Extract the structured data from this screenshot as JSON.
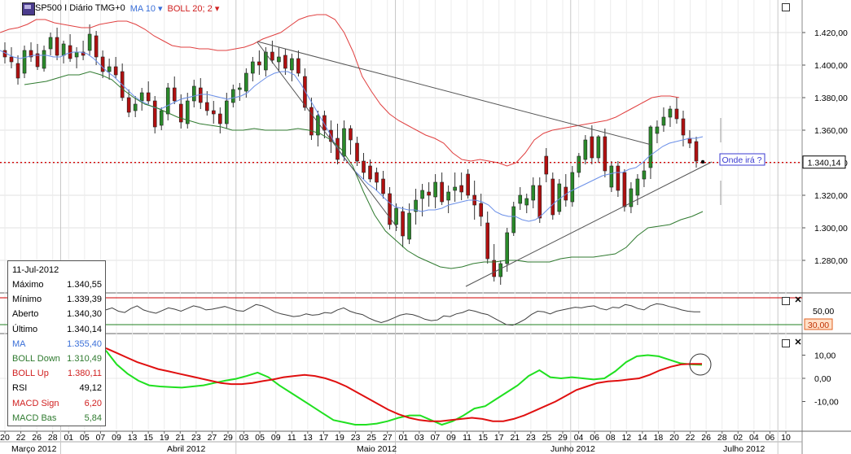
{
  "header": {
    "instrument_label": "SP500 I Diário TMG+0",
    "ma_label": "MA 10",
    "boll_label": "BOLL 20; 2"
  },
  "colors": {
    "ma": "#6a8fe8",
    "boll_up": "#e04040",
    "boll_down": "#2f7a2f",
    "candle_up": "#2a8a2a",
    "candle_down": "#b01010",
    "rsi": "#404040",
    "macd_signal": "#e01010",
    "macd_base": "#20e020",
    "price_line": "#d00000"
  },
  "annotation": "Onde irá ?",
  "current_price_label": "1.340,14",
  "rsi_marker_label": "30,00",
  "info": {
    "date": "11-Jul-2012",
    "rows": [
      {
        "label": "Máximo",
        "value": "1.340,55",
        "color": "#000000"
      },
      {
        "label": "Mínimo",
        "value": "1.339,39",
        "color": "#000000"
      },
      {
        "label": "Aberto",
        "value": "1.340,30",
        "color": "#000000"
      },
      {
        "label": "Último",
        "value": "1.340,14",
        "color": "#000000"
      },
      {
        "label": "MA",
        "value": "1.355,40",
        "color": "#3a6fd8"
      },
      {
        "label": "BOLL Down",
        "value": "1.310,49",
        "color": "#2f7a2f"
      },
      {
        "label": "BOLL Up",
        "value": "1.380,11",
        "color": "#d02020"
      },
      {
        "label": "RSI",
        "value": "49,12",
        "color": "#000000"
      },
      {
        "label": "MACD Sign",
        "value": "6,20",
        "color": "#d02020"
      },
      {
        "label": "MACD Bas",
        "value": "5,84",
        "color": "#2f7a2f"
      }
    ]
  },
  "chart_data": {
    "type": "candlestick",
    "y_ticks": [
      "1.420,00",
      "1.400,00",
      "1.380,00",
      "1.360,00",
      "1.340,00",
      "1.320,00",
      "1.300,00",
      "1.280,00"
    ],
    "y_tick_values": [
      1420,
      1400,
      1380,
      1360,
      1340,
      1320,
      1300,
      1280
    ],
    "ylim": [
      1260,
      1440
    ],
    "current_price": 1340.14,
    "x_day_labels": [
      "20",
      "22",
      "26",
      "28",
      "01",
      "05",
      "07",
      "09",
      "13",
      "15",
      "19",
      "21",
      "23",
      "27",
      "29",
      "03",
      "05",
      "09",
      "11",
      "13",
      "17",
      "19",
      "23",
      "25",
      "27",
      "01",
      "03",
      "07",
      "09",
      "11",
      "15",
      "17",
      "21",
      "23",
      "25",
      "29",
      "04",
      "06",
      "08",
      "12",
      "14",
      "18",
      "20",
      "22",
      "26",
      "28",
      "02",
      "04",
      "06",
      "10"
    ],
    "x_month_labels": [
      "Março 2012",
      "Abril 2012",
      "Maio 2012",
      "Junho 2012",
      "Julho 2012"
    ],
    "candles": [
      {
        "o": 1409,
        "h": 1414,
        "l": 1401,
        "c": 1405
      },
      {
        "o": 1405,
        "h": 1411,
        "l": 1398,
        "c": 1402
      },
      {
        "o": 1401,
        "h": 1406,
        "l": 1388,
        "c": 1392
      },
      {
        "o": 1395,
        "h": 1412,
        "l": 1392,
        "c": 1409
      },
      {
        "o": 1409,
        "h": 1414,
        "l": 1402,
        "c": 1405
      },
      {
        "o": 1407,
        "h": 1413,
        "l": 1397,
        "c": 1399
      },
      {
        "o": 1398,
        "h": 1412,
        "l": 1396,
        "c": 1409
      },
      {
        "o": 1410,
        "h": 1420,
        "l": 1406,
        "c": 1417
      },
      {
        "o": 1417,
        "h": 1423,
        "l": 1403,
        "c": 1406
      },
      {
        "o": 1406,
        "h": 1415,
        "l": 1401,
        "c": 1413
      },
      {
        "o": 1412,
        "h": 1419,
        "l": 1402,
        "c": 1404
      },
      {
        "o": 1405,
        "h": 1411,
        "l": 1398,
        "c": 1408
      },
      {
        "o": 1408,
        "h": 1415,
        "l": 1403,
        "c": 1406
      },
      {
        "o": 1409,
        "h": 1425,
        "l": 1406,
        "c": 1419
      },
      {
        "o": 1418,
        "h": 1421,
        "l": 1400,
        "c": 1405
      },
      {
        "o": 1405,
        "h": 1409,
        "l": 1392,
        "c": 1396
      },
      {
        "o": 1396,
        "h": 1404,
        "l": 1391,
        "c": 1399
      },
      {
        "o": 1399,
        "h": 1405,
        "l": 1392,
        "c": 1394
      },
      {
        "o": 1396,
        "h": 1401,
        "l": 1378,
        "c": 1380
      },
      {
        "o": 1380,
        "h": 1385,
        "l": 1368,
        "c": 1371
      },
      {
        "o": 1372,
        "h": 1381,
        "l": 1368,
        "c": 1376
      },
      {
        "o": 1378,
        "h": 1386,
        "l": 1372,
        "c": 1383
      },
      {
        "o": 1383,
        "h": 1390,
        "l": 1376,
        "c": 1378
      },
      {
        "o": 1378,
        "h": 1381,
        "l": 1358,
        "c": 1362
      },
      {
        "o": 1363,
        "h": 1374,
        "l": 1360,
        "c": 1372
      },
      {
        "o": 1370,
        "h": 1389,
        "l": 1366,
        "c": 1386
      },
      {
        "o": 1386,
        "h": 1393,
        "l": 1376,
        "c": 1378
      },
      {
        "o": 1376,
        "h": 1382,
        "l": 1361,
        "c": 1365
      },
      {
        "o": 1364,
        "h": 1383,
        "l": 1361,
        "c": 1378
      },
      {
        "o": 1378,
        "h": 1391,
        "l": 1374,
        "c": 1387
      },
      {
        "o": 1386,
        "h": 1392,
        "l": 1373,
        "c": 1377
      },
      {
        "o": 1377,
        "h": 1384,
        "l": 1369,
        "c": 1372
      },
      {
        "o": 1372,
        "h": 1378,
        "l": 1364,
        "c": 1370
      },
      {
        "o": 1370,
        "h": 1374,
        "l": 1358,
        "c": 1364
      },
      {
        "o": 1364,
        "h": 1383,
        "l": 1361,
        "c": 1378
      },
      {
        "o": 1377,
        "h": 1388,
        "l": 1374,
        "c": 1385
      },
      {
        "o": 1385,
        "h": 1389,
        "l": 1378,
        "c": 1386
      },
      {
        "o": 1384,
        "h": 1398,
        "l": 1380,
        "c": 1395
      },
      {
        "o": 1395,
        "h": 1405,
        "l": 1390,
        "c": 1402
      },
      {
        "o": 1402,
        "h": 1409,
        "l": 1394,
        "c": 1400
      },
      {
        "o": 1397,
        "h": 1411,
        "l": 1393,
        "c": 1408
      },
      {
        "o": 1408,
        "h": 1415,
        "l": 1401,
        "c": 1403
      },
      {
        "o": 1402,
        "h": 1411,
        "l": 1396,
        "c": 1405
      },
      {
        "o": 1406,
        "h": 1410,
        "l": 1394,
        "c": 1398
      },
      {
        "o": 1397,
        "h": 1407,
        "l": 1390,
        "c": 1404
      },
      {
        "o": 1404,
        "h": 1409,
        "l": 1393,
        "c": 1395
      },
      {
        "o": 1393,
        "h": 1398,
        "l": 1372,
        "c": 1374
      },
      {
        "o": 1374,
        "h": 1380,
        "l": 1354,
        "c": 1357
      },
      {
        "o": 1357,
        "h": 1372,
        "l": 1350,
        "c": 1369
      },
      {
        "o": 1369,
        "h": 1372,
        "l": 1355,
        "c": 1360
      },
      {
        "o": 1360,
        "h": 1366,
        "l": 1346,
        "c": 1353
      },
      {
        "o": 1355,
        "h": 1364,
        "l": 1339,
        "c": 1342
      },
      {
        "o": 1344,
        "h": 1366,
        "l": 1341,
        "c": 1361
      },
      {
        "o": 1361,
        "h": 1363,
        "l": 1345,
        "c": 1354
      },
      {
        "o": 1352,
        "h": 1356,
        "l": 1338,
        "c": 1341
      },
      {
        "o": 1341,
        "h": 1346,
        "l": 1330,
        "c": 1334
      },
      {
        "o": 1338,
        "h": 1342,
        "l": 1328,
        "c": 1330
      },
      {
        "o": 1334,
        "h": 1337,
        "l": 1323,
        "c": 1328
      },
      {
        "o": 1330,
        "h": 1335,
        "l": 1318,
        "c": 1321
      },
      {
        "o": 1321,
        "h": 1325,
        "l": 1299,
        "c": 1302
      },
      {
        "o": 1302,
        "h": 1315,
        "l": 1298,
        "c": 1312
      },
      {
        "o": 1310,
        "h": 1313,
        "l": 1288,
        "c": 1295
      },
      {
        "o": 1293,
        "h": 1315,
        "l": 1290,
        "c": 1309
      },
      {
        "o": 1310,
        "h": 1324,
        "l": 1302,
        "c": 1317
      },
      {
        "o": 1318,
        "h": 1327,
        "l": 1307,
        "c": 1323
      },
      {
        "o": 1322,
        "h": 1328,
        "l": 1313,
        "c": 1320
      },
      {
        "o": 1319,
        "h": 1333,
        "l": 1312,
        "c": 1328
      },
      {
        "o": 1328,
        "h": 1334,
        "l": 1314,
        "c": 1316
      },
      {
        "o": 1317,
        "h": 1326,
        "l": 1309,
        "c": 1322
      },
      {
        "o": 1323,
        "h": 1334,
        "l": 1316,
        "c": 1325
      },
      {
        "o": 1326,
        "h": 1334,
        "l": 1317,
        "c": 1322
      },
      {
        "o": 1333,
        "h": 1336,
        "l": 1318,
        "c": 1320
      },
      {
        "o": 1320,
        "h": 1329,
        "l": 1305,
        "c": 1314
      },
      {
        "o": 1315,
        "h": 1321,
        "l": 1301,
        "c": 1307
      },
      {
        "o": 1303,
        "h": 1310,
        "l": 1278,
        "c": 1281
      },
      {
        "o": 1280,
        "h": 1290,
        "l": 1267,
        "c": 1270
      },
      {
        "o": 1270,
        "h": 1280,
        "l": 1265,
        "c": 1278
      },
      {
        "o": 1278,
        "h": 1300,
        "l": 1273,
        "c": 1297
      },
      {
        "o": 1297,
        "h": 1316,
        "l": 1295,
        "c": 1313
      },
      {
        "o": 1315,
        "h": 1325,
        "l": 1311,
        "c": 1320
      },
      {
        "o": 1314,
        "h": 1321,
        "l": 1309,
        "c": 1318
      },
      {
        "o": 1317,
        "h": 1331,
        "l": 1312,
        "c": 1326
      },
      {
        "o": 1326,
        "h": 1331,
        "l": 1303,
        "c": 1306
      },
      {
        "o": 1344,
        "h": 1349,
        "l": 1328,
        "c": 1333
      },
      {
        "o": 1330,
        "h": 1334,
        "l": 1305,
        "c": 1308
      },
      {
        "o": 1310,
        "h": 1330,
        "l": 1308,
        "c": 1327
      },
      {
        "o": 1325,
        "h": 1333,
        "l": 1313,
        "c": 1317
      },
      {
        "o": 1316,
        "h": 1338,
        "l": 1313,
        "c": 1334
      },
      {
        "o": 1334,
        "h": 1346,
        "l": 1331,
        "c": 1344
      },
      {
        "o": 1342,
        "h": 1357,
        "l": 1339,
        "c": 1354
      },
      {
        "o": 1356,
        "h": 1363,
        "l": 1339,
        "c": 1343
      },
      {
        "o": 1343,
        "h": 1357,
        "l": 1340,
        "c": 1356
      },
      {
        "o": 1356,
        "h": 1361,
        "l": 1331,
        "c": 1335
      },
      {
        "o": 1325,
        "h": 1341,
        "l": 1322,
        "c": 1338
      },
      {
        "o": 1338,
        "h": 1341,
        "l": 1319,
        "c": 1323
      },
      {
        "o": 1334,
        "h": 1336,
        "l": 1310,
        "c": 1313
      },
      {
        "o": 1313,
        "h": 1328,
        "l": 1309,
        "c": 1324
      },
      {
        "o": 1320,
        "h": 1333,
        "l": 1314,
        "c": 1330
      },
      {
        "o": 1330,
        "h": 1341,
        "l": 1325,
        "c": 1335
      },
      {
        "o": 1337,
        "h": 1363,
        "l": 1330,
        "c": 1362
      },
      {
        "o": 1358,
        "h": 1366,
        "l": 1352,
        "c": 1362
      },
      {
        "o": 1363,
        "h": 1374,
        "l": 1359,
        "c": 1368
      },
      {
        "o": 1368,
        "h": 1375,
        "l": 1362,
        "c": 1373
      },
      {
        "o": 1373,
        "h": 1380,
        "l": 1364,
        "c": 1367
      },
      {
        "o": 1367,
        "h": 1372,
        "l": 1350,
        "c": 1357
      },
      {
        "o": 1355,
        "h": 1360,
        "l": 1349,
        "c": 1352
      },
      {
        "o": 1353,
        "h": 1356,
        "l": 1337,
        "c": 1341
      },
      {
        "o": 1340.3,
        "h": 1340.55,
        "l": 1339.39,
        "c": 1340.14
      }
    ],
    "ma10": [
      1409,
      1407,
      1405,
      1404,
      1405,
      1406,
      1406,
      1406,
      1405,
      1405,
      1407,
      1408,
      1408,
      1407,
      1404,
      1400,
      1396,
      1393,
      1389,
      1385,
      1381,
      1378,
      1376,
      1374,
      1373,
      1375,
      1377,
      1379,
      1380,
      1381,
      1382,
      1382,
      1381,
      1380,
      1379,
      1380,
      1381,
      1383,
      1387,
      1390,
      1393,
      1395,
      1396,
      1396,
      1394,
      1388,
      1381,
      1374,
      1367,
      1360,
      1352,
      1345,
      1340,
      1335,
      1331,
      1327,
      1324,
      1320,
      1316,
      1313,
      1312,
      1311,
      1311,
      1310,
      1311,
      1311,
      1312,
      1314,
      1315,
      1316,
      1317,
      1317,
      1316,
      1314,
      1310,
      1308,
      1307,
      1307,
      1305,
      1304,
      1305,
      1308,
      1312,
      1316,
      1319,
      1322,
      1324,
      1326,
      1328,
      1330,
      1332,
      1333,
      1334,
      1334,
      1336,
      1337,
      1340,
      1344,
      1347,
      1350,
      1352,
      1353,
      1354,
      1355,
      1355,
      1356
    ],
    "boll_up": [
      1420,
      1422,
      1423,
      1425,
      1428,
      1428,
      1426,
      1425,
      1424,
      1423,
      1423,
      1425,
      1426,
      1427,
      1427,
      1425,
      1422,
      1418,
      1415,
      1412,
      1411,
      1411,
      1410,
      1410,
      1409,
      1409,
      1410,
      1411,
      1413,
      1416,
      1418,
      1420,
      1424,
      1428,
      1430,
      1431,
      1431,
      1428,
      1420,
      1408,
      1393,
      1384,
      1376,
      1370,
      1366,
      1363,
      1360,
      1357,
      1355,
      1352,
      1346,
      1342,
      1341,
      1342,
      1341,
      1340,
      1338,
      1340,
      1346,
      1354,
      1358,
      1360,
      1361,
      1362,
      1363,
      1364,
      1365,
      1366,
      1368,
      1371,
      1374,
      1377,
      1380,
      1381,
      1381,
      1380
    ],
    "boll_down": [
      1388,
      1389,
      1390,
      1392,
      1394,
      1394,
      1396,
      1394,
      1391,
      1385,
      1380,
      1376,
      1374,
      1371,
      1368,
      1366,
      1364,
      1363,
      1362,
      1360,
      1360,
      1361,
      1360,
      1360,
      1360,
      1361,
      1360,
      1358,
      1354,
      1348,
      1338,
      1322,
      1308,
      1298,
      1292,
      1286,
      1282,
      1279,
      1276,
      1275,
      1276,
      1278,
      1279,
      1279,
      1280,
      1280,
      1279,
      1279,
      1279,
      1281,
      1282,
      1282,
      1282,
      1283,
      1284,
      1288,
      1295,
      1300,
      1301,
      1302,
      1305,
      1307,
      1310
    ],
    "trendlines": [
      {
        "from": [
          1414.5,
          "Abril 27"
        ],
        "to": [
          1351,
          "Junho 28"
        ]
      },
      {
        "from": [
          1414,
          "Abril 27"
        ],
        "to": [
          1300,
          "Maio 23"
        ]
      },
      {
        "from": [
          1264,
          "Junho 04"
        ],
        "to": [
          1340,
          "Julho 10"
        ]
      }
    ],
    "rsi": {
      "levels": [
        70,
        30
      ],
      "tick_labels": [
        "50,00"
      ],
      "last": 49.12
    },
    "macd": {
      "tick_labels": [
        "10,00",
        "0,00",
        "-10,00"
      ],
      "ylim": [
        -21,
        13
      ],
      "signal_last": 6.2,
      "base_last": 5.84
    }
  }
}
